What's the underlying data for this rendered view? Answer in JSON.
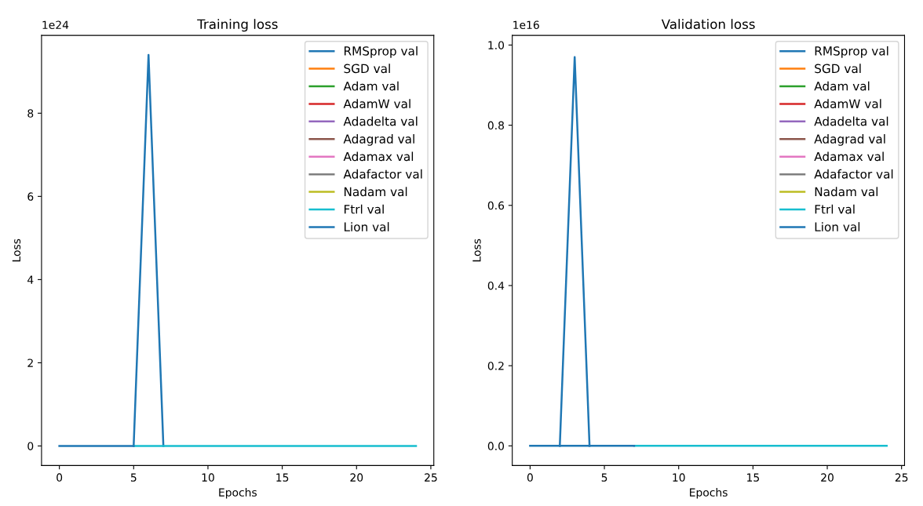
{
  "chart_data": [
    {
      "type": "line",
      "title": "Training loss",
      "xlabel": "Epochs",
      "ylabel": "Loss",
      "annotations": [
        "1e24"
      ],
      "legend": "top right",
      "grid": false,
      "marker": "none",
      "line_style": "solid",
      "xlim": [
        -1.2,
        25.2
      ],
      "xticks": [
        0,
        5,
        10,
        15,
        20,
        25
      ],
      "ylim": [
        -0.47,
        9.87
      ],
      "yticks": [
        0,
        2,
        4,
        6,
        8
      ],
      "series": [
        {
          "name": "RMSprop val",
          "color": "#1f77b4",
          "x": [
            5,
            6,
            7
          ],
          "values": [
            0,
            9.4,
            0
          ]
        },
        {
          "name": "SGD val",
          "color": "#ff7f0e"
        },
        {
          "name": "Adam val",
          "color": "#2ca02c"
        },
        {
          "name": "AdamW val",
          "color": "#d62728"
        },
        {
          "name": "Adadelta val",
          "color": "#9467bd"
        },
        {
          "name": "Adagrad val",
          "color": "#8c564b"
        },
        {
          "name": "Adamax val",
          "color": "#e377c2"
        },
        {
          "name": "Adafactor val",
          "color": "#7f7f7f"
        },
        {
          "name": "Nadam val",
          "color": "#bcbd22"
        },
        {
          "name": "Ftrl val",
          "color": "#17becf",
          "x": [
            5,
            6,
            7,
            8,
            9,
            10,
            11,
            12,
            13,
            14,
            15,
            16,
            17,
            18,
            19,
            20,
            21,
            22,
            23,
            24
          ],
          "values": [
            0,
            0,
            0,
            0,
            0,
            0,
            0,
            0,
            0,
            0,
            0,
            0,
            0,
            0,
            0,
            0,
            0,
            0,
            0,
            0
          ]
        },
        {
          "name": "Lion val",
          "color": "#1f77b4",
          "x": [
            0,
            1,
            2,
            3,
            4,
            5
          ],
          "values": [
            0,
            0,
            0,
            0,
            0,
            0
          ]
        }
      ]
    },
    {
      "type": "line",
      "title": "Validation loss",
      "xlabel": "Epochs",
      "ylabel": "Loss",
      "annotations": [
        "1e16"
      ],
      "legend": "top right",
      "grid": false,
      "marker": "none",
      "line_style": "solid",
      "xlim": [
        -1.2,
        25.2
      ],
      "xticks": [
        0,
        5,
        10,
        15,
        20,
        25
      ],
      "ylim": [
        -0.049,
        1.024
      ],
      "yticks": [
        {
          "value": 0,
          "label": "0.0"
        },
        {
          "value": 0.2,
          "label": "0.2"
        },
        {
          "value": 0.4,
          "label": "0.4"
        },
        {
          "value": 0.6,
          "label": "0.6"
        },
        {
          "value": 0.8,
          "label": "0.8"
        },
        {
          "value": 1.0,
          "label": "1.0"
        }
      ],
      "series": [
        {
          "name": "RMSprop val",
          "color": "#1f77b4",
          "x": [
            2,
            3,
            4
          ],
          "values": [
            0,
            0.97,
            0
          ]
        },
        {
          "name": "SGD val",
          "color": "#ff7f0e"
        },
        {
          "name": "Adam val",
          "color": "#2ca02c"
        },
        {
          "name": "AdamW val",
          "color": "#d62728"
        },
        {
          "name": "Adadelta val",
          "color": "#9467bd"
        },
        {
          "name": "Adagrad val",
          "color": "#8c564b"
        },
        {
          "name": "Adamax val",
          "color": "#e377c2"
        },
        {
          "name": "Adafactor val",
          "color": "#7f7f7f"
        },
        {
          "name": "Nadam val",
          "color": "#bcbd22"
        },
        {
          "name": "Ftrl val",
          "color": "#17becf",
          "x": [
            7,
            8,
            9,
            10,
            11,
            12,
            13,
            14,
            15,
            16,
            17,
            18,
            19,
            20,
            21,
            22,
            23,
            24
          ],
          "values": [
            0,
            0,
            0,
            0,
            0,
            0,
            0,
            0,
            0,
            0,
            0,
            0,
            0,
            0,
            0,
            0,
            0,
            0
          ]
        },
        {
          "name": "Lion val",
          "color": "#1f77b4",
          "x": [
            0,
            1,
            2,
            3,
            4,
            5,
            6,
            7
          ],
          "values": [
            0,
            0,
            0,
            0,
            0,
            0,
            0,
            0
          ]
        }
      ]
    }
  ]
}
